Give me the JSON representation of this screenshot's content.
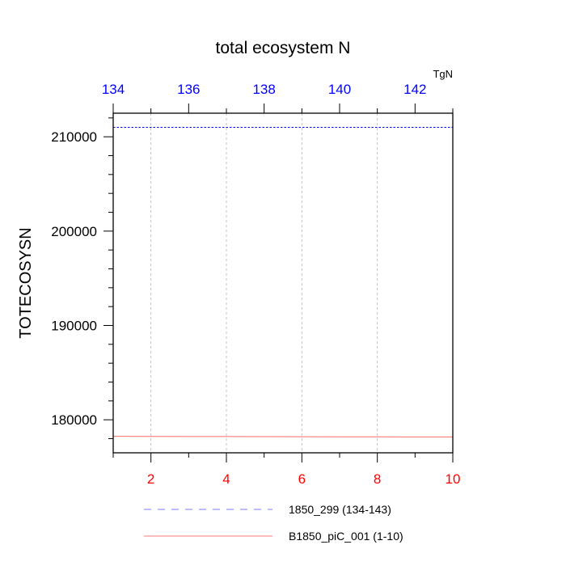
{
  "chart_data": {
    "type": "line",
    "title": "total ecosystem N",
    "ylabel": "TOTECOSYSN",
    "units": "TgN",
    "ylim": [
      176500,
      212500
    ],
    "yticks": [
      180000,
      190000,
      200000,
      210000
    ],
    "ytick_labels": [
      "180000",
      "190000",
      "200000",
      "210000"
    ],
    "x_bottom": {
      "range": [
        1,
        10
      ],
      "ticks": [
        2,
        4,
        6,
        8,
        10
      ],
      "tick_labels": [
        "2",
        "4",
        "6",
        "8",
        "10"
      ],
      "color": "#ff0000"
    },
    "x_top": {
      "range": [
        134,
        143
      ],
      "ticks": [
        134,
        136,
        138,
        140,
        142
      ],
      "tick_labels": [
        "134",
        "136",
        "138",
        "140",
        "142"
      ],
      "color": "#0000ff"
    },
    "grid": true,
    "legend_placement": "bottom",
    "series": [
      {
        "name": "1850_299 (134-143)",
        "axis": "top",
        "color": "#0000ff",
        "style": "dashed",
        "x": [
          134,
          135,
          136,
          137,
          138,
          139,
          140,
          141,
          142,
          143
        ],
        "y": [
          211000,
          211000,
          211000,
          211000,
          211000,
          211000,
          211000,
          211000,
          211000,
          211000
        ]
      },
      {
        "name": "B1850_piC_001 (1-10)",
        "axis": "bottom",
        "color": "#ff0000",
        "style": "solid",
        "x": [
          1,
          2,
          3,
          4,
          5,
          6,
          7,
          8,
          9,
          10
        ],
        "y": [
          178250,
          178240,
          178230,
          178220,
          178210,
          178200,
          178195,
          178190,
          178185,
          178180
        ]
      }
    ]
  }
}
